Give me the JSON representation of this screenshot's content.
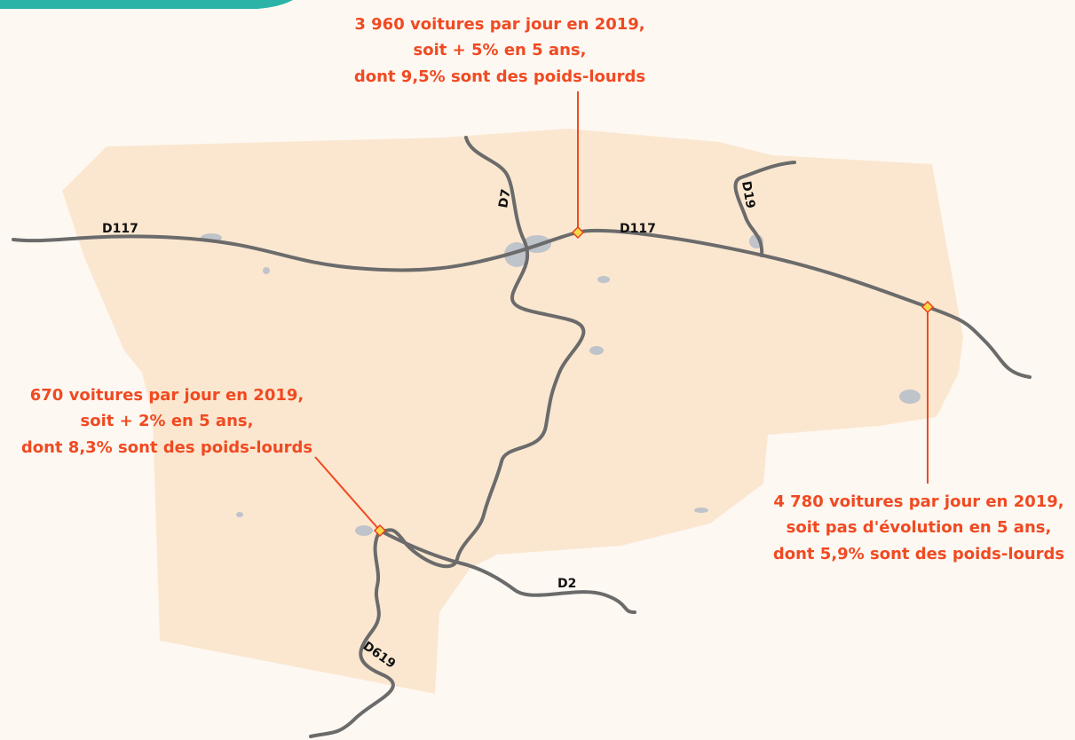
{
  "annotations": [
    {
      "lines": [
        "3 960 voitures par jour en 2019,",
        "soit + 5% en 5 ans,",
        "dont 9,5% sont des poids-lourds"
      ]
    },
    {
      "lines": [
        "670 voitures par jour en 2019,",
        "soit + 2% en 5 ans,",
        "dont 8,3% sont des poids-lourds"
      ]
    },
    {
      "lines": [
        "4 780 voitures par jour en 2019,",
        "soit pas d'évolution en 5 ans,",
        "dont 5,9% sont des poids-lourds"
      ]
    }
  ],
  "roads": [
    "D117",
    "D117",
    "D7",
    "D19",
    "D2",
    "D619"
  ]
}
